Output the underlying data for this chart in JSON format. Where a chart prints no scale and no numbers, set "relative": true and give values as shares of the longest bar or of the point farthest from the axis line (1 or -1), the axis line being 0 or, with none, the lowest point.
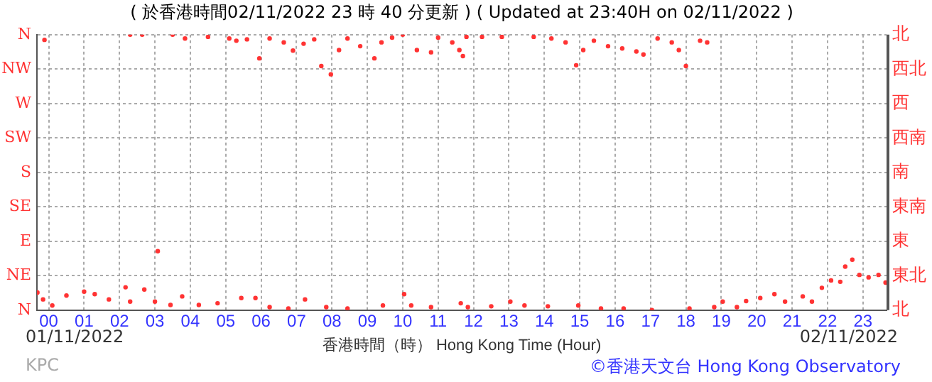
{
  "chart_data": {
    "type": "scatter",
    "title": "( 於香港時間02/11/2022 23 時 40 分更新 ) ( Updated at 23:40H on 02/11/2022 )",
    "xlabel": "香港時間（時） Hong Kong Time (Hour)",
    "relative": true,
    "x": [
      -0.12,
      2.3,
      2.64,
      3.5,
      3.85,
      4.5,
      5.1,
      5.3,
      5.6,
      5.95,
      6.24,
      6.64,
      6.9,
      7.2,
      7.5,
      7.7,
      7.97,
      8.2,
      8.44,
      8.8,
      9.2,
      9.4,
      9.7,
      10.0,
      10.4,
      10.8,
      11.0,
      11.4,
      11.6,
      11.7,
      11.8,
      12.24,
      12.8,
      13.7,
      14.2,
      14.6,
      14.9,
      15.1,
      15.4,
      15.8,
      16.2,
      16.6,
      16.8,
      17.2,
      17.6,
      17.8,
      18.0,
      18.4,
      18.6,
      -0.32,
      -0.16,
      0.1,
      0.5,
      1.0,
      1.3,
      1.7,
      2.17,
      2.3,
      2.7,
      3.0,
      3.08,
      3.44,
      3.77,
      4.24,
      4.77,
      5.44,
      5.84,
      6.24,
      6.77,
      7.24,
      7.84,
      8.44,
      9.44,
      10.04,
      10.24,
      10.8,
      11.64,
      11.84,
      12.5,
      13.04,
      13.44,
      14.1,
      14.96,
      15.6,
      16.24,
      17.04,
      18.1,
      18.8,
      19.04,
      19.44,
      19.7,
      20.1,
      20.5,
      20.8,
      21.3,
      21.56,
      21.84,
      22.1,
      22.36,
      22.5,
      22.7,
      22.9,
      23.16,
      23.44,
      23.64
    ],
    "values": [
      0.981,
      1,
      1,
      1,
      0.986,
      0.992,
      0.986,
      0.978,
      0.983,
      0.914,
      0.986,
      0.972,
      0.942,
      0.967,
      0.983,
      0.886,
      0.856,
      0.944,
      0.986,
      0.958,
      0.914,
      0.972,
      0.989,
      1,
      0.944,
      0.936,
      0.989,
      0.972,
      0.944,
      0.922,
      0.992,
      0.992,
      0.992,
      0.992,
      0.986,
      0.972,
      0.889,
      0.944,
      0.978,
      0.958,
      0.95,
      0.939,
      0.928,
      0.986,
      0.972,
      0.944,
      0.886,
      0.978,
      0.972,
      0.064,
      0.039,
      0.017,
      0.053,
      0.067,
      0.058,
      0.039,
      0.083,
      0.031,
      0.075,
      0.031,
      0.214,
      0.019,
      0.05,
      0.019,
      0.025,
      0.044,
      0.044,
      0.011,
      0.006,
      0.039,
      0.011,
      0.006,
      0.017,
      0.058,
      0.017,
      0.011,
      0.025,
      0.011,
      0.014,
      0.031,
      0.017,
      0.014,
      0.017,
      0.006,
      0.006,
      0,
      0.006,
      0.011,
      0.031,
      0.011,
      0.033,
      0.044,
      0.058,
      0.031,
      0.05,
      0.031,
      0.081,
      0.108,
      0.103,
      0.158,
      0.183,
      0.128,
      0.119,
      0.128,
      0.1
    ],
    "color": "#ff3333",
    "marker": "circle",
    "grid": true,
    "xlim": [
      -0.333,
      23.667
    ],
    "xticks": [
      {
        "value": 0,
        "label": "00"
      },
      {
        "value": 1,
        "label": "01"
      },
      {
        "value": 2,
        "label": "02"
      },
      {
        "value": 3,
        "label": "03"
      },
      {
        "value": 4,
        "label": "04"
      },
      {
        "value": 5,
        "label": "05"
      },
      {
        "value": 6,
        "label": "06"
      },
      {
        "value": 7,
        "label": "07"
      },
      {
        "value": 8,
        "label": "08"
      },
      {
        "value": 9,
        "label": "09"
      },
      {
        "value": 10,
        "label": "10"
      },
      {
        "value": 11,
        "label": "11"
      },
      {
        "value": 12,
        "label": "12"
      },
      {
        "value": 13,
        "label": "13"
      },
      {
        "value": 14,
        "label": "14"
      },
      {
        "value": 15,
        "label": "15"
      },
      {
        "value": 16,
        "label": "16"
      },
      {
        "value": 17,
        "label": "17"
      },
      {
        "value": 18,
        "label": "18"
      },
      {
        "value": 19,
        "label": "19"
      },
      {
        "value": 20,
        "label": "20"
      },
      {
        "value": 21,
        "label": "21"
      },
      {
        "value": 22,
        "label": "22"
      },
      {
        "value": 23,
        "label": "23"
      }
    ],
    "annotations": [
      "01/11/2022",
      "02/11/2022",
      "KPC",
      "©香港天文台 Hong Kong Observatory",
      "N",
      "NE",
      "E",
      "SE",
      "S",
      "SW",
      "W",
      "NW",
      "N",
      "北",
      "東北",
      "東",
      "東南",
      "南",
      "西南",
      "西",
      "西北",
      "北"
    ]
  }
}
